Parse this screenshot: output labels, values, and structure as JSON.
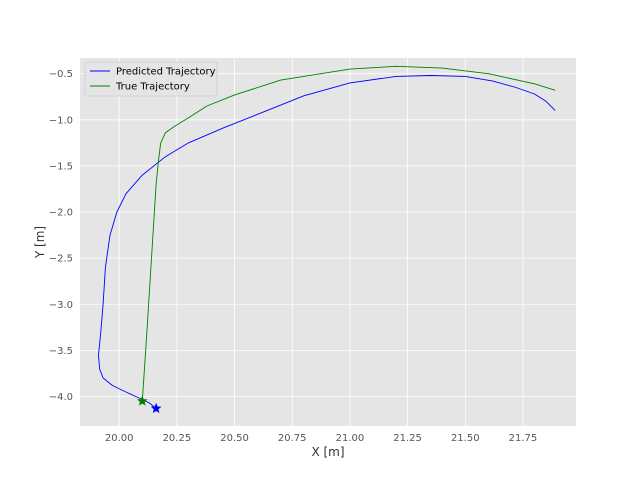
{
  "chart_data": {
    "type": "line",
    "title": "",
    "xlabel": "X [m]",
    "ylabel": "Y [m]",
    "xlim": [
      19.83,
      21.98
    ],
    "ylim": [
      -4.32,
      -0.33
    ],
    "grid": true,
    "legend_position": "top-left",
    "x_ticks": [
      20.0,
      20.25,
      20.5,
      20.75,
      21.0,
      21.25,
      21.5,
      21.75
    ],
    "x_tick_labels": [
      "20.00",
      "20.25",
      "20.50",
      "20.75",
      "21.00",
      "21.25",
      "21.50",
      "21.75"
    ],
    "y_ticks": [
      -0.5,
      -1.0,
      -1.5,
      -2.0,
      -2.5,
      -3.0,
      -3.5,
      -4.0
    ],
    "y_tick_labels": [
      "−0.5",
      "−1.0",
      "−1.5",
      "−2.0",
      "−2.5",
      "−3.0",
      "−3.5",
      "−4.0"
    ],
    "series": [
      {
        "name": "Predicted Trajectory",
        "color": "#0000ff",
        "x": [
          20.16,
          20.13,
          20.08,
          20.02,
          19.97,
          19.93,
          19.915,
          19.91,
          19.92,
          19.93,
          19.94,
          19.96,
          19.99,
          20.03,
          20.1,
          20.2,
          20.3,
          20.45,
          20.6,
          20.8,
          21.0,
          21.2,
          21.35,
          21.5,
          21.62,
          21.72,
          21.8,
          21.85,
          21.89
        ],
        "y": [
          -4.13,
          -4.07,
          -4.01,
          -3.94,
          -3.88,
          -3.8,
          -3.7,
          -3.55,
          -3.3,
          -3.0,
          -2.6,
          -2.25,
          -2.0,
          -1.8,
          -1.6,
          -1.4,
          -1.25,
          -1.09,
          -0.94,
          -0.74,
          -0.6,
          -0.53,
          -0.52,
          -0.53,
          -0.58,
          -0.65,
          -0.72,
          -0.8,
          -0.9
        ]
      },
      {
        "name": "True Trajectory",
        "color": "#008000",
        "x": [
          20.1,
          20.12,
          20.14,
          20.16,
          20.17,
          20.18,
          20.2,
          20.24,
          20.3,
          20.38,
          20.5,
          20.7,
          21.0,
          21.2,
          21.4,
          21.6,
          21.8,
          21.89
        ],
        "y": [
          -4.05,
          -3.3,
          -2.5,
          -1.7,
          -1.45,
          -1.25,
          -1.14,
          -1.07,
          -0.98,
          -0.85,
          -0.73,
          -0.57,
          -0.45,
          -0.42,
          -0.44,
          -0.5,
          -0.61,
          -0.68
        ]
      }
    ],
    "markers": [
      {
        "name": "Predicted Trajectory start",
        "x": 20.16,
        "y": -4.13,
        "color": "#0000ff",
        "shape": "star"
      },
      {
        "name": "True Trajectory start",
        "x": 20.1,
        "y": -4.05,
        "color": "#008000",
        "shape": "star"
      }
    ]
  }
}
